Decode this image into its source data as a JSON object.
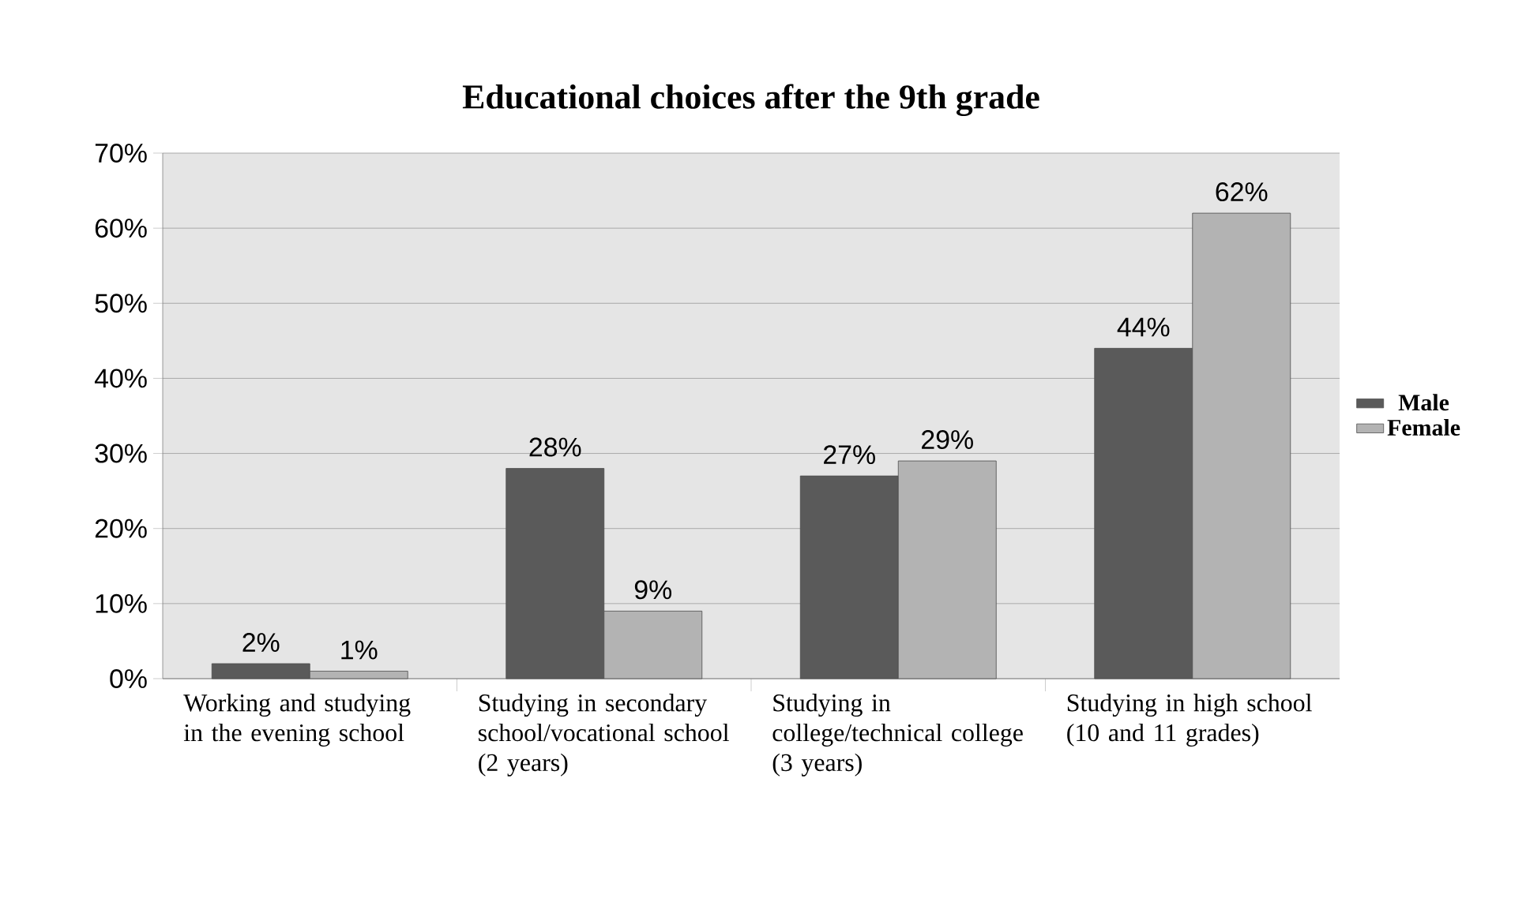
{
  "chart_data": {
    "type": "bar",
    "title": "Educational choices after the 9th grade",
    "categories": [
      "Working and studying in the evening school",
      "Studying in secondary school/vocational school (2 years)",
      "Studying in college/technical college (3 years)",
      "Studying in high school (10 and 11 grades)"
    ],
    "series": [
      {
        "name": "Male",
        "color": "#5a5a5a",
        "values": [
          2,
          28,
          27,
          44
        ],
        "value_labels": [
          "2%",
          "28%",
          "27%",
          "44%"
        ]
      },
      {
        "name": "Female",
        "color": "#b3b3b3",
        "values": [
          1,
          9,
          29,
          62
        ],
        "value_labels": [
          "1%",
          "9%",
          "29%",
          "62%"
        ]
      }
    ],
    "ylim": [
      0,
      70
    ],
    "yticks": [
      {
        "value": 0,
        "label": "0%"
      },
      {
        "value": 10,
        "label": "10%"
      },
      {
        "value": 20,
        "label": "20%"
      },
      {
        "value": 30,
        "label": "30%"
      },
      {
        "value": 40,
        "label": "40%"
      },
      {
        "value": 50,
        "label": "50%"
      },
      {
        "value": 60,
        "label": "60%"
      },
      {
        "value": 70,
        "label": "70%"
      }
    ],
    "grid": "y",
    "legend": "right"
  }
}
